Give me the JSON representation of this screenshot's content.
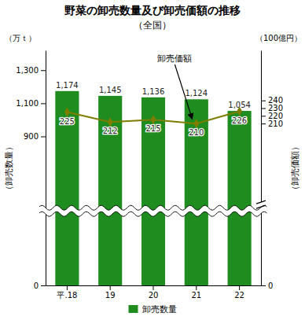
{
  "chart_data": {
    "type": "bar",
    "title": "野菜の卸売数量及び卸売価額の推移",
    "subtitle": "（全国）",
    "categories": [
      "平.18",
      "19",
      "20",
      "21",
      "22"
    ],
    "series": [
      {
        "name": "卸売数量",
        "type": "bar",
        "color": "#1e8c1e",
        "values": [
          1174,
          1145,
          1136,
          1124,
          1054
        ],
        "value_labels": [
          "1,174",
          "1,145",
          "1,136",
          "1,124",
          "1,054"
        ]
      },
      {
        "name": "卸売価額",
        "type": "line",
        "axis": "y2",
        "color": "#7d7d00",
        "marker": "diamond",
        "values": [
          225,
          212,
          215,
          210,
          226
        ]
      }
    ],
    "ylim": [
      0,
      1420
    ],
    "yticks": [
      0,
      900,
      {
        "value": 1100,
        "label": "1,100"
      },
      {
        "value": 1300,
        "label": "1,300"
      }
    ],
    "y2lim": [
      0,
      305
    ],
    "y2ticks": [
      0,
      210,
      220,
      230,
      240
    ],
    "y_label": "（卸売数量）",
    "y2_label": "（卸売価額）",
    "annotations": [
      {
        "text": "（万ｔ）",
        "axis": "y"
      },
      {
        "text": "（100億円）",
        "axis": "y2"
      }
    ],
    "data_labels": true,
    "grid": false,
    "legend": "bottom"
  }
}
